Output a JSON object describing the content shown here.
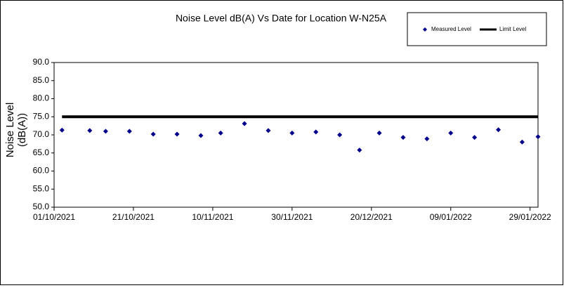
{
  "chart_data": {
    "type": "scatter",
    "title": "Noise Level dB(A) Vs Date for Location W-N25A",
    "ylabel": "Noise Level (dB(A))",
    "xlim": [
      "2021-10-01",
      "2022-01-31"
    ],
    "xticks": [
      {
        "value": "2021-10-01",
        "label": "01/10/2021"
      },
      {
        "value": "2021-10-21",
        "label": "21/10/2021"
      },
      {
        "value": "2021-11-10",
        "label": "10/11/2021"
      },
      {
        "value": "2021-11-30",
        "label": "30/11/2021"
      },
      {
        "value": "2021-12-20",
        "label": "20/12/2021"
      },
      {
        "value": "2022-01-09",
        "label": "09/01/2022"
      },
      {
        "value": "2022-01-29",
        "label": "29/01/2022"
      }
    ],
    "ylim": [
      50,
      90
    ],
    "yticks": [
      {
        "value": 50,
        "label": "50.0"
      },
      {
        "value": 55,
        "label": "55.0"
      },
      {
        "value": 60,
        "label": "60.0"
      },
      {
        "value": 65,
        "label": "65.0"
      },
      {
        "value": 70,
        "label": "70.0"
      },
      {
        "value": 75,
        "label": "75.0"
      },
      {
        "value": 80,
        "label": "80.0"
      },
      {
        "value": 85,
        "label": "85.0"
      },
      {
        "value": 90,
        "label": "90.0"
      }
    ],
    "legend": "upper right",
    "series": [
      {
        "name": "Measured Level",
        "color": "#00008b",
        "style": "marker",
        "x": [
          "2021-10-03",
          "2021-10-10",
          "2021-10-14",
          "2021-10-20",
          "2021-10-26",
          "2021-11-01",
          "2021-11-07",
          "2021-11-12",
          "2021-11-18",
          "2021-11-24",
          "2021-11-30",
          "2021-12-06",
          "2021-12-12",
          "2021-12-17",
          "2021-12-22",
          "2021-12-28",
          "2022-01-03",
          "2022-01-09",
          "2022-01-15",
          "2022-01-21",
          "2022-01-27",
          "2022-01-31"
        ],
        "values": [
          71.3,
          71.2,
          71.0,
          71.0,
          70.2,
          70.2,
          69.8,
          70.5,
          73.1,
          71.2,
          70.5,
          70.8,
          70.0,
          65.8,
          70.5,
          69.3,
          68.9,
          70.5,
          69.3,
          71.4,
          68.0,
          69.5
        ]
      },
      {
        "name": "Limit Level",
        "color": "#000000",
        "style": "line",
        "x": [
          "2021-10-03",
          "2022-01-31"
        ],
        "values": [
          75,
          75
        ]
      }
    ]
  }
}
